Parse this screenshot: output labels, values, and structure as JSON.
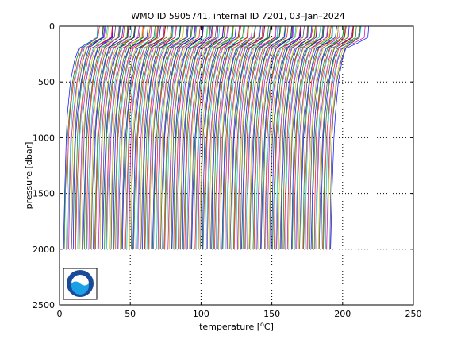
{
  "chart_data": {
    "type": "line",
    "title": "WMO ID 5905741, internal ID 7201, 03–Jan–2024",
    "xlabel_prefix": "temperature [",
    "xlabel_sup": "o",
    "xlabel_suffix": "C]",
    "ylabel": "pressure [dbar]",
    "xlim": [
      0,
      250
    ],
    "ylim": [
      0,
      2500
    ],
    "y_reversed": true,
    "grid": "dotted",
    "xticks": [
      "0",
      "50",
      "100",
      "150",
      "200",
      "250"
    ],
    "yticks": [
      "0",
      "500",
      "1000",
      "1500",
      "2000",
      "2500"
    ],
    "xtick_values": [
      0,
      50,
      100,
      150,
      200,
      250
    ],
    "ytick_values": [
      0,
      500,
      1000,
      1500,
      2000,
      2500
    ],
    "series_count": 190,
    "series_offset_step": 1.0,
    "profile_template": {
      "pressure": [
        0,
        100,
        150,
        200,
        300,
        500,
        800,
        1000,
        1500,
        2000
      ],
      "temperature": [
        27.0,
        26.2,
        20.0,
        13.5,
        11.0,
        8.0,
        5.6,
        4.6,
        3.4,
        2.7
      ]
    },
    "colors": [
      "#0000ff",
      "#008000",
      "#ff0000",
      "#00bfbf",
      "#bf00bf",
      "#bfbf00",
      "#404040"
    ]
  },
  "logo": {
    "text": "NOAA",
    "colors": {
      "outer": "#1b4a9a",
      "inner": "#ffffff",
      "water": "#1aa0e6"
    }
  }
}
